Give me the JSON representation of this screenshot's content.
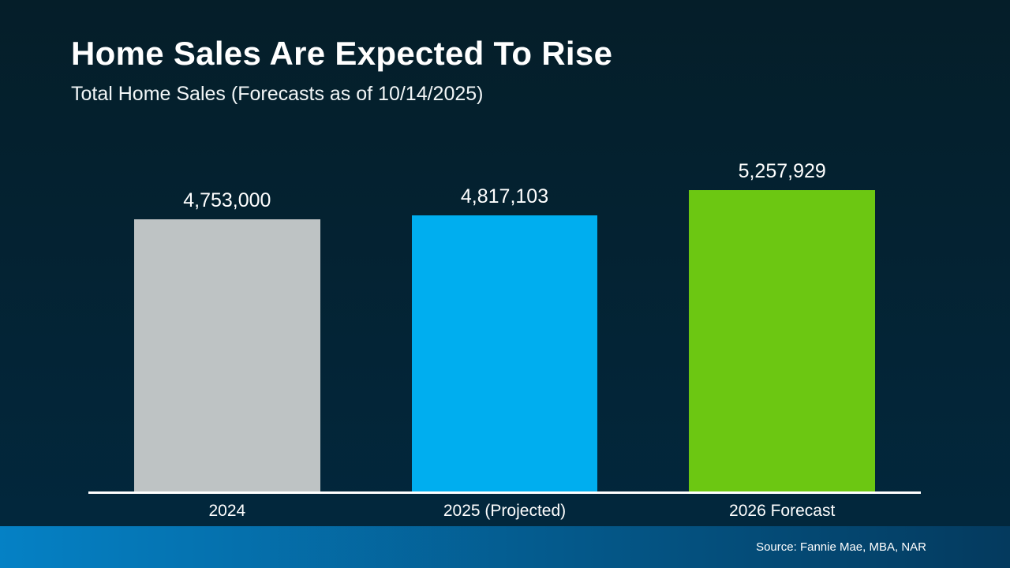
{
  "slide": {
    "title": "Home Sales Are Expected To Rise",
    "subtitle": "Total Home Sales (Forecasts as of 10/14/2025)",
    "source": "Source: Fannie Mae, MBA, NAR"
  },
  "chart_data": {
    "type": "bar",
    "title": "Home Sales Are Expected To Rise",
    "subtitle": "Total Home Sales (Forecasts as of 10/14/2025)",
    "categories": [
      "2024",
      "2025 (Projected)",
      "2026 Forecast"
    ],
    "values": [
      4753000,
      4817103,
      5257929
    ],
    "value_labels": [
      "4,753,000",
      "4,817,103",
      "5,257,929"
    ],
    "bar_colors": [
      "#BEC3C4",
      "#00AEEF",
      "#6CC712"
    ],
    "xlabel": "",
    "ylabel": "",
    "ylim": [
      0,
      5257929
    ],
    "grid": false,
    "legend": false,
    "y_axis_ticks_visible": false,
    "baseline_axis_color": "#FFFFFF",
    "annotation": "Source: Fannie Mae, MBA, NAR"
  },
  "colors": {
    "background_top": "#051E29",
    "background_bottom": "#02283E",
    "footer_gradient_left": "#0581C5",
    "footer_gradient_right": "#043A5E",
    "axis_line": "#FFFFFF",
    "text": "#FFFFFF"
  }
}
